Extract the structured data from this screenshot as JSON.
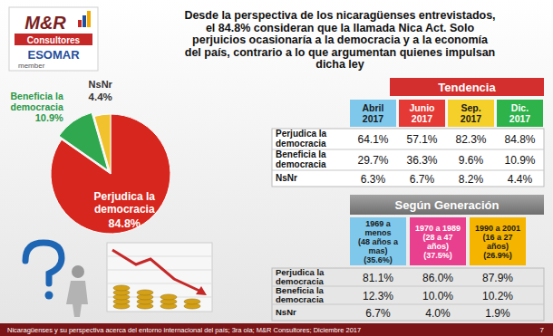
{
  "title": [
    "Desde la perspectiva de los nicaragüenses entrevistados,",
    "el 84.8% consideran que la llamada Nica Act. Solo",
    "perjuicios ocasionaría a la democracia y a la economía",
    "del país, contrario a lo que argumentan quienes impulsan",
    "dicha ley"
  ],
  "logo": {
    "name": "M&R",
    "subtitle": "Consultores",
    "association": "ESOMAR",
    "membership": "member"
  },
  "chart_data": {
    "type": "pie",
    "categories": [
      "Perjudica la democracia",
      "Beneficia la democracia",
      "NsNr"
    ],
    "values": [
      84.8,
      10.9,
      4.4
    ],
    "value_labels": [
      "84.8%",
      "10.9%",
      "4.4%"
    ],
    "colors": [
      "#d7261e",
      "#2fa84f",
      "#f2c12e"
    ],
    "data_labels": true
  },
  "trend_table": {
    "title": "Tendencia",
    "columns": [
      [
        "Abril",
        "2017"
      ],
      [
        "Junio",
        "2017"
      ],
      [
        "Sep.",
        "2017"
      ],
      [
        "Dic.",
        "2017"
      ]
    ],
    "column_colors": [
      "#7fc8ec",
      "#e53935",
      "#f5d02a",
      "#2db34a"
    ],
    "rows": [
      [
        [
          "Perjudica la",
          "democracia"
        ],
        "64.1%",
        "57.1%",
        "82.3%",
        "84.8%"
      ],
      [
        [
          "Beneficia la",
          "democracia"
        ],
        "29.7%",
        "36.3%",
        "9.6%",
        "10.9%"
      ],
      [
        [
          "NsNr"
        ],
        "6.3%",
        "6.7%",
        "8.2%",
        "4.4%"
      ]
    ]
  },
  "generation_table": {
    "title": "Según Generación",
    "columns": [
      [
        "1969 a",
        "menos",
        "(48 años a",
        "mas)",
        "(35.6%)"
      ],
      [
        "1970 a 1989",
        "(28 a 47",
        "años)",
        "(37.5%)"
      ],
      [
        "1990 a 2001",
        "(16 a 27",
        "años)",
        "(26.9%)"
      ]
    ],
    "column_colors": [
      "#7fc8ec",
      "#e8408f",
      "#f4b400"
    ],
    "rows": [
      [
        [
          "Perjudica la",
          "democracia"
        ],
        "81.1%",
        "86.0%",
        "87.9%"
      ],
      [
        [
          "Beneficia la",
          "democracia"
        ],
        "12.3%",
        "10.0%",
        "10.2%"
      ],
      [
        [
          "NsNr"
        ],
        "6.7%",
        "4.0%",
        "1.9%"
      ]
    ]
  },
  "footer": {
    "source": "Nicaragüenses y su perspectiva acerca del entorno internacional del país; 3ra ola; M&R Consultores; Diciembre 2017",
    "page": "7"
  }
}
